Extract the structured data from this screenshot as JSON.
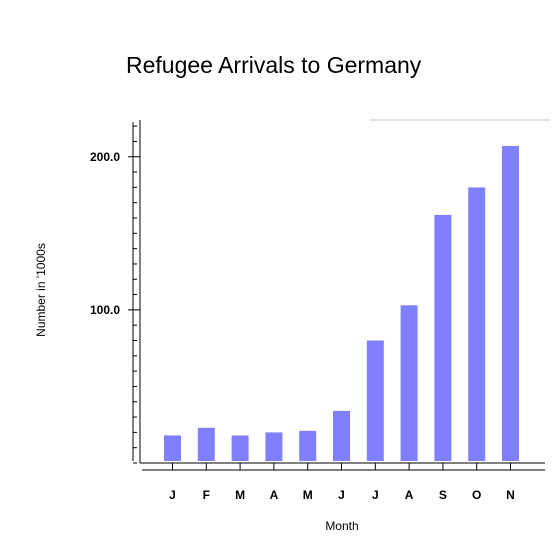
{
  "chart_data": {
    "type": "bar",
    "title": "Refugee Arrivals to Germany",
    "xlabel": "Month",
    "ylabel": "Number in '1000s",
    "categories": [
      "J",
      "F",
      "M",
      "A",
      "M",
      "J",
      "J",
      "A",
      "S",
      "O",
      "N"
    ],
    "values": [
      18,
      23,
      18,
      20,
      21,
      34,
      80,
      103,
      162,
      180,
      207
    ],
    "ylim": [
      0,
      224
    ],
    "yticks": [
      100,
      200
    ],
    "ytick_labels": [
      "100.0",
      "200.0"
    ],
    "grid": false,
    "bar_color": "#8080ff"
  }
}
